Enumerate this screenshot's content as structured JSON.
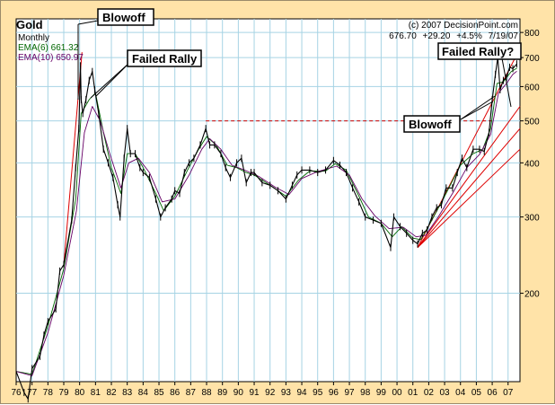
{
  "chart_data": {
    "type": "line",
    "title": "Gold",
    "period": "Monthly",
    "source": "(c) 2007 DecisionPoint.com",
    "quote": {
      "last": "676.70",
      "change": "+29.20",
      "pct": "+4.5%",
      "date": "7/19/07"
    },
    "ema_labels": [
      "EMA(6) 661.32",
      "EMA(10) 650.97"
    ],
    "x_ticks": [
      "76",
      "77",
      "78",
      "79",
      "80",
      "81",
      "82",
      "83",
      "84",
      "85",
      "86",
      "87",
      "88",
      "89",
      "90",
      "91",
      "92",
      "93",
      "94",
      "95",
      "96",
      "97",
      "98",
      "99",
      "00",
      "01",
      "02",
      "03",
      "04",
      "05",
      "06",
      "07"
    ],
    "y_ticks": [
      200,
      300,
      400,
      500,
      600,
      700,
      800
    ],
    "y_scale": "log",
    "ylim": [
      125,
      860
    ],
    "xlim": [
      1976.0,
      2007.75
    ],
    "grid": true,
    "annotations": [
      "Blowoff",
      "Failed Rally",
      "Failed Rally?",
      "Blowoff"
    ],
    "series": [
      {
        "name": "Gold",
        "points": [
          [
            1976.0,
            132
          ],
          [
            1976.5,
            118
          ],
          [
            1976.75,
            114
          ],
          [
            1977.0,
            134
          ],
          [
            1977.5,
            143
          ],
          [
            1977.75,
            160
          ],
          [
            1978.0,
            172
          ],
          [
            1978.5,
            184
          ],
          [
            1978.75,
            225
          ],
          [
            1979.0,
            233
          ],
          [
            1979.5,
            295
          ],
          [
            1979.75,
            390
          ],
          [
            1979.95,
            480
          ],
          [
            1980.05,
            670
          ],
          [
            1980.1,
            560
          ],
          [
            1980.2,
            520
          ],
          [
            1980.4,
            560
          ],
          [
            1980.6,
            620
          ],
          [
            1980.8,
            650
          ],
          [
            1980.95,
            590
          ],
          [
            1981.2,
            520
          ],
          [
            1981.5,
            430
          ],
          [
            1981.8,
            400
          ],
          [
            1982.1,
            370
          ],
          [
            1982.4,
            320
          ],
          [
            1982.55,
            300
          ],
          [
            1982.8,
            410
          ],
          [
            1983.0,
            480
          ],
          [
            1983.2,
            420
          ],
          [
            1983.5,
            420
          ],
          [
            1983.8,
            390
          ],
          [
            1984.0,
            380
          ],
          [
            1984.4,
            370
          ],
          [
            1984.8,
            330
          ],
          [
            1985.1,
            300
          ],
          [
            1985.4,
            315
          ],
          [
            1985.8,
            330
          ],
          [
            1986.0,
            345
          ],
          [
            1986.3,
            340
          ],
          [
            1986.6,
            380
          ],
          [
            1986.9,
            400
          ],
          [
            1987.2,
            410
          ],
          [
            1987.6,
            440
          ],
          [
            1987.95,
            480
          ],
          [
            1988.2,
            440
          ],
          [
            1988.5,
            440
          ],
          [
            1988.9,
            420
          ],
          [
            1989.2,
            390
          ],
          [
            1989.5,
            370
          ],
          [
            1989.9,
            400
          ],
          [
            1990.2,
            410
          ],
          [
            1990.5,
            360
          ],
          [
            1990.8,
            380
          ],
          [
            1991.0,
            380
          ],
          [
            1991.5,
            360
          ],
          [
            1992.0,
            355
          ],
          [
            1992.5,
            345
          ],
          [
            1993.0,
            330
          ],
          [
            1993.4,
            355
          ],
          [
            1993.7,
            375
          ],
          [
            1994.0,
            385
          ],
          [
            1994.5,
            385
          ],
          [
            1995.0,
            380
          ],
          [
            1995.5,
            385
          ],
          [
            1996.0,
            405
          ],
          [
            1996.4,
            395
          ],
          [
            1996.8,
            380
          ],
          [
            1997.2,
            350
          ],
          [
            1997.6,
            325
          ],
          [
            1998.0,
            300
          ],
          [
            1998.5,
            295
          ],
          [
            1999.0,
            290
          ],
          [
            1999.6,
            255
          ],
          [
            1999.8,
            300
          ],
          [
            2000.2,
            285
          ],
          [
            2000.6,
            275
          ],
          [
            2001.0,
            265
          ],
          [
            2001.3,
            260
          ],
          [
            2001.6,
            275
          ],
          [
            2001.9,
            280
          ],
          [
            2002.2,
            300
          ],
          [
            2002.5,
            315
          ],
          [
            2002.8,
            320
          ],
          [
            2003.1,
            350
          ],
          [
            2003.5,
            350
          ],
          [
            2003.8,
            380
          ],
          [
            2004.1,
            410
          ],
          [
            2004.4,
            390
          ],
          [
            2004.8,
            430
          ],
          [
            2005.2,
            430
          ],
          [
            2005.5,
            425
          ],
          [
            2005.8,
            470
          ],
          [
            2006.0,
            560
          ],
          [
            2006.2,
            640
          ],
          [
            2006.35,
            700
          ],
          [
            2006.5,
            590
          ],
          [
            2006.7,
            620
          ],
          [
            2006.9,
            630
          ],
          [
            2007.1,
            665
          ],
          [
            2007.3,
            660
          ],
          [
            2007.55,
            676.7
          ]
        ]
      },
      {
        "name": "EMA(6)",
        "points": [
          [
            1976.0,
            132
          ],
          [
            1977.0,
            130
          ],
          [
            1978.0,
            168
          ],
          [
            1979.0,
            228
          ],
          [
            1979.75,
            330
          ],
          [
            1980.1,
            520
          ],
          [
            1980.6,
            560
          ],
          [
            1981.0,
            580
          ],
          [
            1981.5,
            470
          ],
          [
            1982.0,
            390
          ],
          [
            1982.6,
            340
          ],
          [
            1983.0,
            420
          ],
          [
            1983.5,
            420
          ],
          [
            1984.0,
            390
          ],
          [
            1984.8,
            340
          ],
          [
            1985.3,
            310
          ],
          [
            1986.0,
            335
          ],
          [
            1986.8,
            385
          ],
          [
            1987.5,
            430
          ],
          [
            1988.0,
            460
          ],
          [
            1988.6,
            440
          ],
          [
            1989.3,
            395
          ],
          [
            1989.9,
            390
          ],
          [
            1990.5,
            380
          ],
          [
            1991.0,
            375
          ],
          [
            1992.0,
            355
          ],
          [
            1993.0,
            335
          ],
          [
            1993.8,
            365
          ],
          [
            1994.5,
            383
          ],
          [
            1995.5,
            383
          ],
          [
            1996.1,
            398
          ],
          [
            1996.8,
            385
          ],
          [
            1997.6,
            335
          ],
          [
            1998.2,
            300
          ],
          [
            1999.0,
            290
          ],
          [
            1999.7,
            270
          ],
          [
            2000.3,
            285
          ],
          [
            2001.0,
            268
          ],
          [
            2001.5,
            266
          ],
          [
            2002.2,
            295
          ],
          [
            2003.0,
            335
          ],
          [
            2004.0,
            395
          ],
          [
            2004.8,
            420
          ],
          [
            2005.4,
            430
          ],
          [
            2005.9,
            480
          ],
          [
            2006.3,
            610
          ],
          [
            2006.7,
            615
          ],
          [
            2007.2,
            650
          ],
          [
            2007.55,
            661.3
          ]
        ]
      },
      {
        "name": "EMA(10)",
        "points": [
          [
            1976.0,
            132
          ],
          [
            1977.0,
            129
          ],
          [
            1978.0,
            162
          ],
          [
            1979.0,
            220
          ],
          [
            1979.8,
            310
          ],
          [
            1980.3,
            470
          ],
          [
            1980.8,
            540
          ],
          [
            1981.3,
            500
          ],
          [
            1981.9,
            420
          ],
          [
            1982.6,
            350
          ],
          [
            1983.1,
            400
          ],
          [
            1983.7,
            410
          ],
          [
            1984.4,
            380
          ],
          [
            1985.2,
            325
          ],
          [
            1986.0,
            330
          ],
          [
            1986.9,
            375
          ],
          [
            1987.7,
            430
          ],
          [
            1988.2,
            455
          ],
          [
            1988.9,
            430
          ],
          [
            1989.6,
            395
          ],
          [
            1990.4,
            385
          ],
          [
            1991.3,
            372
          ],
          [
            1992.3,
            352
          ],
          [
            1993.2,
            338
          ],
          [
            1994.0,
            368
          ],
          [
            1995.0,
            382
          ],
          [
            1996.2,
            393
          ],
          [
            1997.0,
            375
          ],
          [
            1997.8,
            330
          ],
          [
            1998.6,
            302
          ],
          [
            1999.5,
            282
          ],
          [
            2000.4,
            284
          ],
          [
            2001.2,
            270
          ],
          [
            2001.8,
            272
          ],
          [
            2002.6,
            300
          ],
          [
            2003.5,
            340
          ],
          [
            2004.4,
            390
          ],
          [
            2005.2,
            418
          ],
          [
            2005.9,
            465
          ],
          [
            2006.4,
            580
          ],
          [
            2006.9,
            610
          ],
          [
            2007.3,
            640
          ],
          [
            2007.55,
            651.0
          ]
        ]
      }
    ],
    "reference_line": {
      "value": 500,
      "x_from": 1987.95,
      "x_to": 2006.05,
      "style": "dashed"
    },
    "trend_lines": [
      {
        "from": [
          1979.0,
          233
        ],
        "to": [
          1980.15,
          720
        ]
      },
      {
        "from": [
          2001.3,
          255
        ],
        "to": [
          2007.75,
          735
        ]
      },
      {
        "from": [
          2001.3,
          255
        ],
        "to": [
          2007.75,
          540
        ]
      },
      {
        "from": [
          2001.3,
          255
        ],
        "to": [
          2007.75,
          480
        ]
      },
      {
        "from": [
          2001.3,
          255
        ],
        "to": [
          2007.75,
          430
        ]
      }
    ]
  },
  "colors": {
    "frame_bg": "#ffe3a8",
    "plot_bg": "#ffffff",
    "grid": "#a6d3e4",
    "price": "#000000",
    "ema6": "#006600",
    "ema10": "#660066",
    "trend": "#dd0000",
    "reference": "#cc0000"
  }
}
